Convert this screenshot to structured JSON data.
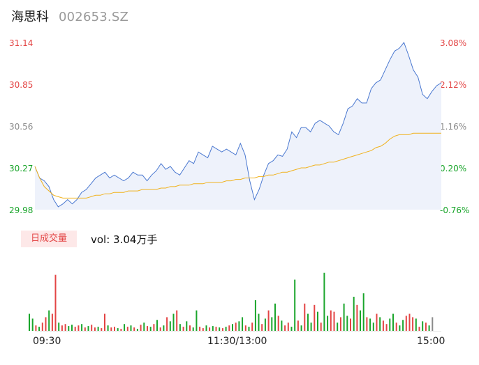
{
  "header": {
    "name": "海思科",
    "code": "002653.SZ"
  },
  "price_axis": {
    "left_ticks": [
      "31.14",
      "30.85",
      "30.56",
      "30.27",
      "29.98"
    ],
    "right_ticks": [
      "3.08%",
      "2.12%",
      "1.16%",
      "0.20%",
      "-0.76%"
    ]
  },
  "volume": {
    "tab_label": "日成交量",
    "vol_text": "vol: 3.04万手"
  },
  "time_axis": [
    "09:30",
    "11:30/13:00",
    "15:00"
  ],
  "colors": {
    "up": "#e34444",
    "down": "#1aa52b",
    "neutral": "#8a8a8a",
    "price_line": "#4a78d0",
    "avg_line": "#f0b21e",
    "area_fill": "#eef2fb"
  },
  "chart_data": [
    {
      "type": "line",
      "y_range": [
        29.98,
        31.14
      ],
      "pct_range": [
        -0.76,
        3.08
      ],
      "series": [
        {
          "name": "price",
          "values": [
            30.28,
            30.2,
            30.18,
            30.14,
            30.05,
            30.0,
            30.02,
            30.05,
            30.02,
            30.05,
            30.1,
            30.12,
            30.16,
            30.2,
            30.22,
            30.24,
            30.2,
            30.22,
            30.2,
            30.18,
            30.2,
            30.24,
            30.22,
            30.22,
            30.18,
            30.22,
            30.25,
            30.3,
            30.26,
            30.28,
            30.24,
            30.22,
            30.27,
            30.32,
            30.3,
            30.38,
            30.36,
            30.34,
            30.42,
            30.4,
            30.38,
            30.4,
            30.38,
            30.36,
            30.44,
            30.36,
            30.18,
            30.05,
            30.12,
            30.22,
            30.3,
            30.32,
            30.36,
            30.35,
            30.4,
            30.52,
            30.48,
            30.55,
            30.55,
            30.52,
            30.58,
            30.6,
            30.58,
            30.56,
            30.52,
            30.5,
            30.58,
            30.68,
            30.7,
            30.75,
            30.72,
            30.72,
            30.82,
            30.86,
            30.88,
            30.95,
            31.02,
            31.08,
            31.1,
            31.14,
            31.05,
            30.95,
            30.9,
            30.78,
            30.75,
            30.8,
            30.84,
            30.86
          ]
        },
        {
          "name": "avg",
          "values": [
            30.28,
            30.2,
            30.14,
            30.11,
            30.08,
            30.07,
            30.06,
            30.06,
            30.06,
            30.06,
            30.06,
            30.06,
            30.07,
            30.08,
            30.08,
            30.09,
            30.09,
            30.1,
            30.1,
            30.1,
            30.11,
            30.11,
            30.11,
            30.12,
            30.12,
            30.12,
            30.12,
            30.13,
            30.13,
            30.14,
            30.14,
            30.15,
            30.15,
            30.15,
            30.16,
            30.16,
            30.16,
            30.17,
            30.17,
            30.17,
            30.17,
            30.18,
            30.18,
            30.19,
            30.19,
            30.2,
            30.2,
            30.2,
            30.21,
            30.21,
            30.22,
            30.22,
            30.23,
            30.24,
            30.24,
            30.25,
            30.26,
            30.27,
            30.27,
            30.28,
            30.29,
            30.29,
            30.3,
            30.31,
            30.31,
            30.32,
            30.33,
            30.34,
            30.35,
            30.36,
            30.37,
            30.38,
            30.39,
            30.41,
            30.42,
            30.44,
            30.47,
            30.49,
            30.5,
            30.5,
            30.5,
            30.51,
            30.51,
            30.51,
            30.51,
            30.51,
            30.51,
            30.51
          ]
        }
      ]
    },
    {
      "type": "bar",
      "y_range": [
        0,
        100
      ],
      "values": [
        25,
        18,
        8,
        6,
        12,
        20,
        30,
        25,
        82,
        12,
        8,
        10,
        7,
        9,
        6,
        8,
        10,
        5,
        7,
        9,
        5,
        6,
        4,
        25,
        8,
        5,
        6,
        4,
        3,
        10,
        6,
        8,
        5,
        3,
        9,
        12,
        7,
        6,
        10,
        16,
        5,
        8,
        20,
        14,
        25,
        30,
        10,
        6,
        14,
        8,
        5,
        30,
        6,
        4,
        8,
        5,
        7,
        6,
        5,
        4,
        6,
        8,
        10,
        12,
        14,
        20,
        8,
        6,
        12,
        45,
        25,
        10,
        18,
        30,
        20,
        40,
        22,
        15,
        8,
        12,
        6,
        75,
        15,
        8,
        40,
        25,
        12,
        38,
        28,
        12,
        85,
        22,
        30,
        28,
        12,
        20,
        40,
        22,
        18,
        50,
        38,
        30,
        55,
        20,
        18,
        12,
        25,
        20,
        15,
        10,
        18,
        25,
        12,
        8,
        16,
        22,
        25,
        20,
        18,
        6,
        14,
        12,
        8,
        20
      ],
      "colors": [
        "down",
        "down",
        "up",
        "down",
        "up",
        "up",
        "down",
        "up",
        "up",
        "down",
        "up",
        "up",
        "down",
        "down",
        "up",
        "up",
        "down",
        "up",
        "down",
        "up",
        "up",
        "down",
        "up",
        "up",
        "down",
        "up",
        "up",
        "down",
        "up",
        "down",
        "up",
        "down",
        "up",
        "down",
        "up",
        "down",
        "up",
        "down",
        "up",
        "down",
        "up",
        "down",
        "up",
        "down",
        "down",
        "up",
        "down",
        "up",
        "down",
        "up",
        "down",
        "down",
        "up",
        "up",
        "down",
        "up",
        "down",
        "up",
        "down",
        "up",
        "down",
        "up",
        "down",
        "up",
        "down",
        "down",
        "up",
        "down",
        "up",
        "down",
        "down",
        "up",
        "down",
        "up",
        "down",
        "down",
        "up",
        "down",
        "up",
        "up",
        "down",
        "down",
        "up",
        "down",
        "up",
        "down",
        "down",
        "up",
        "down",
        "up",
        "down",
        "down",
        "up",
        "up",
        "down",
        "up",
        "down",
        "down",
        "up",
        "down",
        "up",
        "down",
        "down",
        "up",
        "down",
        "down",
        "up",
        "down",
        "up",
        "up",
        "down",
        "down",
        "up",
        "down",
        "down",
        "up",
        "up",
        "up",
        "down",
        "up",
        "down",
        "up",
        "down",
        "neutral"
      ]
    }
  ]
}
